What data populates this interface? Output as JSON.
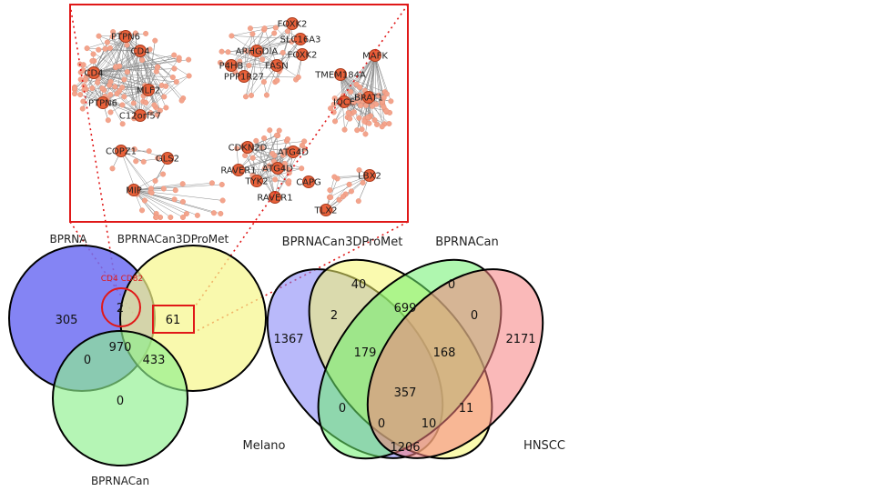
{
  "venn3": {
    "set_labels": {
      "a": "BPRNA",
      "b": "BPRNACan3DProMet",
      "c": "BPRNACan"
    },
    "counts": {
      "a_only": "305",
      "ab": "2",
      "b_only": "61",
      "abc": "970",
      "ac": "0",
      "bc": "433",
      "c_only": "0"
    },
    "callout_label": "CD4 CD82"
  },
  "venn4": {
    "set_labels": {
      "a": "Melano",
      "b": "BPRNACan3DProMet",
      "c": "BPRNACan",
      "d": "HNSCC"
    },
    "counts": {
      "a_only": "1367",
      "b_only": "40",
      "c_only": "0",
      "d_only": "2171",
      "ab": "2",
      "bc": "699",
      "cd": "0",
      "abc": "179",
      "bcd": "168",
      "abcd": "357",
      "ac": "0",
      "bd": "11",
      "acd": "0",
      "abd": "10",
      "ad": "1206"
    }
  },
  "network": {
    "genes": [
      "PTPN6",
      "CD4",
      "CD4",
      "MLF2",
      "PTPN6",
      "C12orf57",
      "FOXK2",
      "SLC16A3",
      "ARHGDIA",
      "FOXK2",
      "P4HB",
      "FASN",
      "PPP1R27",
      "MAFK",
      "TMEM184A",
      "IQCE",
      "BRAT1",
      "COPZ1",
      "GLS2",
      "CDKN2D",
      "ATG4D",
      "RAVER1",
      "ATG4D",
      "TYK2",
      "RAVER1",
      "CAPG",
      "MIP",
      "LBX2",
      "TLX2"
    ]
  },
  "colors": {
    "venn3_a": "#6f6ff2",
    "venn3_b": "#f7f78a",
    "venn3_c": "#8ef08e",
    "venn4_a": "#7f7ff5",
    "venn4_b": "#f5f56e",
    "venn4_c": "#6ef06e",
    "venn4_d": "#f57f7f",
    "highlight": "#e01818",
    "node": "#e8613a",
    "leaf": "#f3a48c"
  }
}
